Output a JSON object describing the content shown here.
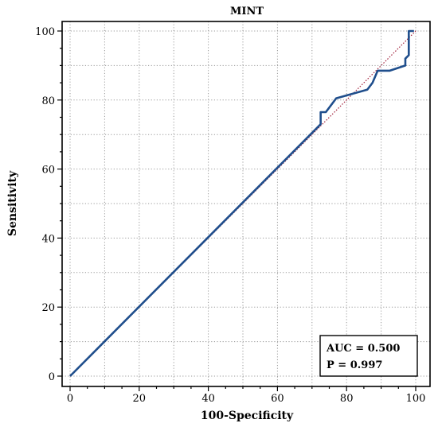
{
  "chart_data": {
    "type": "line",
    "title": "MINT",
    "xlabel": "100-Specificity",
    "ylabel": "Sensitivity",
    "xlim": [
      0,
      100
    ],
    "ylim": [
      0,
      100
    ],
    "xticks": [
      "0",
      "20",
      "40",
      "60",
      "80",
      "100"
    ],
    "yticks": [
      "0",
      "20",
      "40",
      "60",
      "80",
      "100"
    ],
    "grid": true,
    "series": [
      {
        "style": "solid",
        "color": "#1f4e8c",
        "x": [
          0,
          72.5,
          72.5,
          74,
          77,
          86,
          87.5,
          89,
          89,
          92.5,
          97,
          97,
          98,
          98,
          99.5
        ],
        "y": [
          0,
          73,
          76.5,
          76.5,
          80.5,
          83,
          85,
          88.5,
          88.5,
          88.5,
          90,
          92,
          93,
          100,
          100
        ]
      },
      {
        "style": "dotted",
        "color": "#a0203a",
        "x": [
          0,
          100
        ],
        "y": [
          0,
          100
        ]
      }
    ],
    "annotation": {
      "auc": "AUC = 0.500",
      "p": "P = 0.997",
      "placement": "bottom-right"
    }
  }
}
